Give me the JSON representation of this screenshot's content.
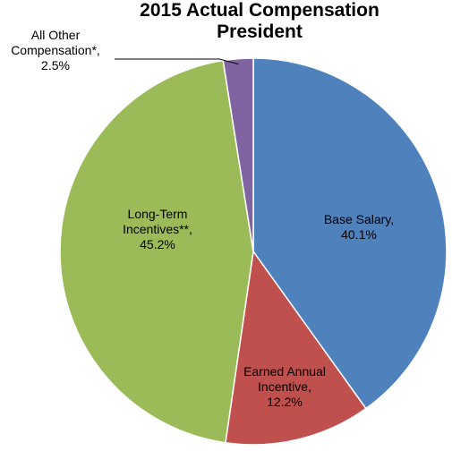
{
  "chart_data": {
    "type": "pie",
    "title_line1": "2015 Actual Compensation",
    "title_line2": "President",
    "start_angle_deg": 0,
    "direction": "clockwise",
    "slices": [
      {
        "label_lines": [
          "Base Salary,",
          "40.1%"
        ],
        "name": "Base Salary",
        "value": 40.1,
        "color": "#4F81BD"
      },
      {
        "label_lines": [
          "Earned Annual",
          "Incentive,",
          "12.2%"
        ],
        "name": "Earned Annual Incentive",
        "value": 12.2,
        "color": "#C0504D"
      },
      {
        "label_lines": [
          "Long-Term",
          "Incentives**,",
          "45.2%"
        ],
        "name": "Long-Term Incentives**",
        "value": 45.2,
        "color": "#9BBB59"
      },
      {
        "label_lines": [
          "All Other",
          "Compensation*,",
          "2.5%"
        ],
        "name": "All Other Compensation*",
        "value": 2.5,
        "color": "#8064A2"
      }
    ]
  }
}
